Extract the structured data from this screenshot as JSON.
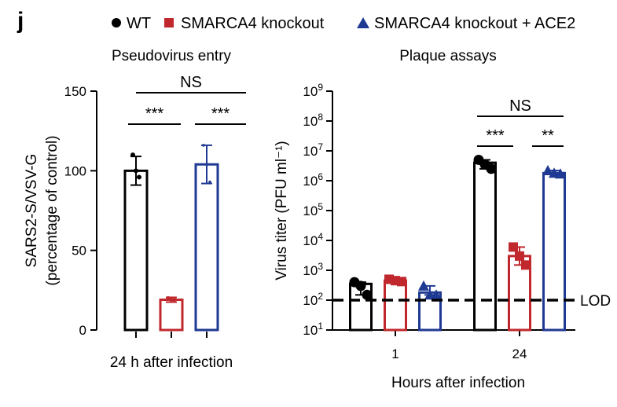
{
  "panel_label": "j",
  "legend": [
    {
      "label": "WT",
      "color": "#000000",
      "marker": "circle"
    },
    {
      "label": "SMARCA4 knockout",
      "color": "#c0282d",
      "marker": "square"
    },
    {
      "label": "SMARCA4 knockout + ACE2",
      "color": "#1f3a93",
      "marker": "triangle"
    }
  ],
  "colors": {
    "wt": "#000000",
    "ko": "#c0282d",
    "ace2": "#1f3a93"
  },
  "chart_data": [
    {
      "type": "bar",
      "title": "Pseudovirus entry",
      "xlabel": "24 h after infection",
      "ylabel": [
        "SARS2-S/VSV-G",
        "(percentage of control)"
      ],
      "ylim": [
        0,
        150
      ],
      "yticks": [
        0,
        50,
        100,
        150
      ],
      "ytick_labels": [
        "0",
        "50",
        "100",
        "150"
      ],
      "categories": [
        "24 h after infection"
      ],
      "series": [
        {
          "name": "WT",
          "values": [
            100
          ],
          "error": [
            9
          ],
          "points": [
            110,
            100,
            96
          ]
        },
        {
          "name": "SMARCA4 knockout",
          "values": [
            19
          ],
          "error": [
            1.5
          ],
          "points": [
            20,
            19,
            19
          ]
        },
        {
          "name": "SMARCA4 knockout + ACE2",
          "values": [
            104
          ],
          "error": [
            12
          ],
          "points": [
            116,
            104,
            93
          ]
        }
      ],
      "significance": [
        {
          "pair": [
            0,
            1
          ],
          "label": "***"
        },
        {
          "pair": [
            1,
            2
          ],
          "label": "***"
        },
        {
          "pair": [
            0,
            2
          ],
          "label": "NS"
        }
      ]
    },
    {
      "type": "bar",
      "title": "Plaque assays",
      "xlabel": "Hours after infection",
      "ylabel": "Virus titer (PFU ml⁻¹)",
      "yscale": "log",
      "ylim": [
        10,
        1000000000
      ],
      "ytick_labels": [
        "10^1",
        "10^2",
        "10^3",
        "10^4",
        "10^5",
        "10^6",
        "10^7",
        "10^8",
        "10^9"
      ],
      "categories": [
        "1",
        "24"
      ],
      "reference_line": {
        "value": 100,
        "label": "LOD"
      },
      "series": [
        {
          "name": "WT",
          "values": [
            350,
            4000000
          ],
          "points": [
            [
              400,
              300,
              150
            ],
            [
              5000000,
              3500000,
              2500000
            ]
          ]
        },
        {
          "name": "SMARCA4 knockout",
          "values": [
            450,
            3000
          ],
          "points": [
            [
              500,
              450,
              420
            ],
            [
              6000,
              3000,
              1500
            ]
          ]
        },
        {
          "name": "SMARCA4 knockout + ACE2",
          "values": [
            180,
            1800000
          ],
          "points": [
            [
              300,
              150,
              150
            ],
            [
              2200000,
              1800000,
              1700000
            ]
          ]
        }
      ],
      "significance": [
        {
          "group": "24",
          "pair": [
            0,
            1
          ],
          "label": "***"
        },
        {
          "group": "24",
          "pair": [
            1,
            2
          ],
          "label": "**"
        },
        {
          "group": "24",
          "pair": [
            0,
            2
          ],
          "label": "NS"
        }
      ]
    }
  ]
}
